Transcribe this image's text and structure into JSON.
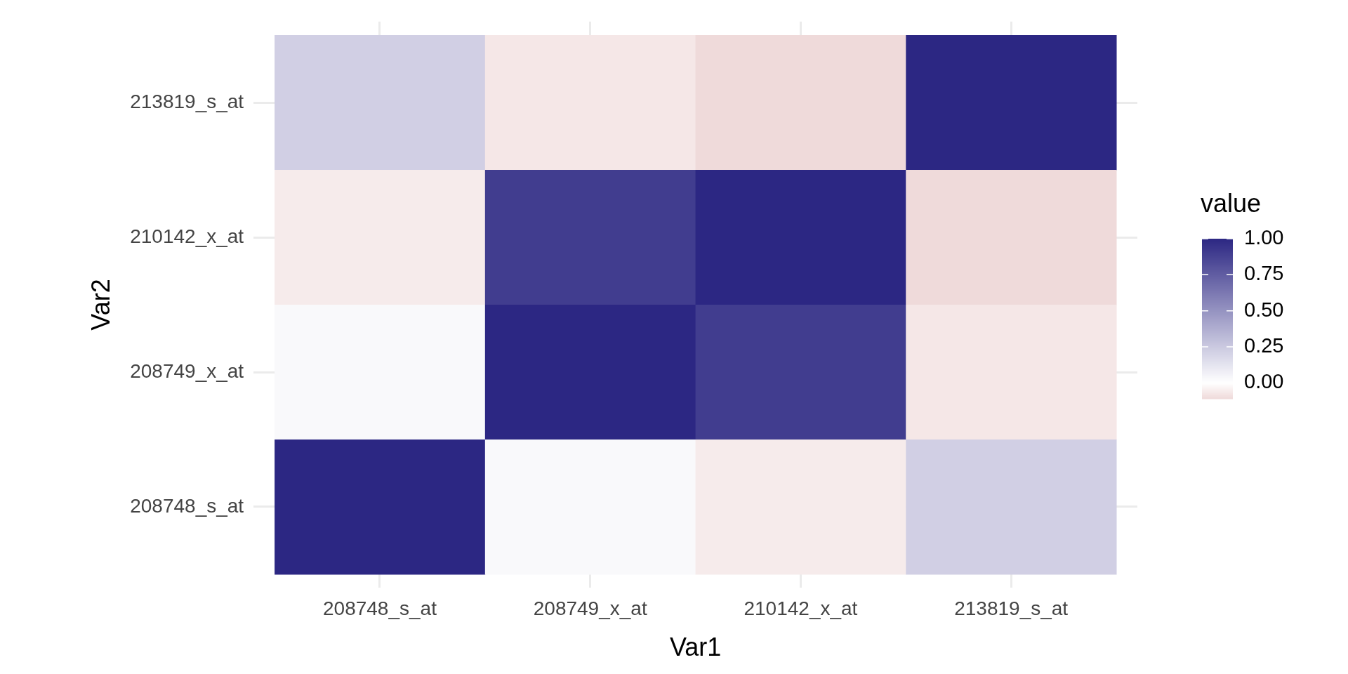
{
  "chart_data": {
    "type": "heatmap",
    "xlabel": "Var1",
    "ylabel": "Var2",
    "legend_title": "value",
    "categories": [
      "208748_s_at",
      "208749_x_at",
      "210142_x_at",
      "213819_s_at"
    ],
    "y_categories": [
      "213819_s_at",
      "210142_x_at",
      "208749_x_at",
      "208748_s_at"
    ],
    "cells": [
      [
        0.22,
        -0.07,
        -0.11,
        1
      ],
      [
        -0.06,
        0.9,
        1,
        -0.11
      ],
      [
        0.03,
        1,
        0.9,
        -0.07
      ],
      [
        1,
        0.03,
        -0.06,
        0.22
      ]
    ],
    "colors": [
      "#efdada",
      "#ffffff",
      "#2c2783"
    ],
    "clim": [
      -0.11,
      1
    ],
    "cticks": [
      {
        "value": 0,
        "label": "0.00"
      },
      {
        "value": 0.25,
        "label": "0.25"
      },
      {
        "value": 0.5,
        "label": "0.50"
      },
      {
        "value": 0.75,
        "label": "0.75"
      },
      {
        "value": 1,
        "label": "1.00"
      }
    ],
    "grid": true
  }
}
